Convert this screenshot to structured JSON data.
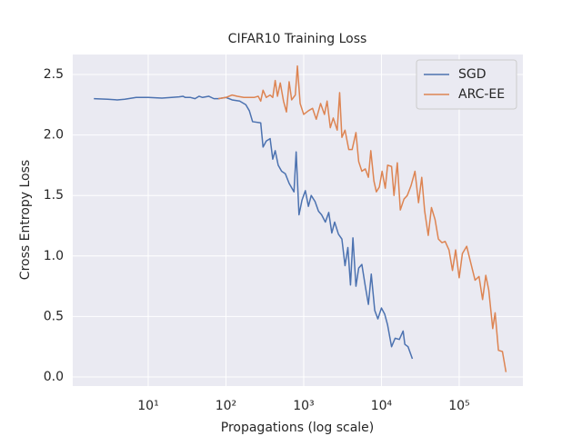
{
  "chart_data": {
    "type": "line",
    "title": "CIFAR10 Training Loss",
    "x_label": "Propagations (log scale)",
    "y_label": "Cross Entropy Loss",
    "xscale": "log",
    "grid": true,
    "legend": "upper right",
    "xlim": [
      1.07,
      660000
    ],
    "ylim": [
      -0.075,
      2.665
    ],
    "xticks": [
      {
        "value": 10,
        "label": "10¹"
      },
      {
        "value": 100,
        "label": "10²"
      },
      {
        "value": 1000,
        "label": "10³"
      },
      {
        "value": 10000,
        "label": "10⁴"
      },
      {
        "value": 100000,
        "label": "10⁵"
      }
    ],
    "yticks": [
      {
        "value": 0,
        "label": "0.0"
      },
      {
        "value": 0.5,
        "label": "0.5"
      },
      {
        "value": 1,
        "label": "1.0"
      },
      {
        "value": 1.5,
        "label": "1.5"
      },
      {
        "value": 2,
        "label": "2.0"
      },
      {
        "value": 2.5,
        "label": "2.5"
      }
    ],
    "series": [
      {
        "name": "SGD",
        "color": "#4c72b0",
        "x": [
          2,
          3,
          4,
          5,
          7,
          10,
          15,
          20,
          25,
          28,
          30,
          35,
          40,
          45,
          50,
          60,
          70,
          80,
          100,
          120,
          150,
          180,
          200,
          220,
          280,
          300,
          330,
          370,
          400,
          430,
          470,
          520,
          580,
          650,
          750,
          800,
          870,
          950,
          1050,
          1150,
          1250,
          1400,
          1550,
          1700,
          1900,
          2100,
          2300,
          2500,
          2800,
          3100,
          3400,
          3700,
          4000,
          4300,
          4700,
          5100,
          5600,
          6200,
          6800,
          7400,
          8200,
          9000,
          10000,
          11000,
          12000,
          13500,
          15000,
          17000,
          19000,
          20000,
          22000,
          25000
        ],
        "values": [
          2.3,
          2.295,
          2.29,
          2.295,
          2.31,
          2.31,
          2.305,
          2.31,
          2.315,
          2.32,
          2.31,
          2.31,
          2.3,
          2.32,
          2.31,
          2.32,
          2.3,
          2.3,
          2.31,
          2.29,
          2.28,
          2.25,
          2.2,
          2.11,
          2.1,
          1.9,
          1.95,
          1.97,
          1.8,
          1.87,
          1.75,
          1.7,
          1.68,
          1.6,
          1.53,
          1.86,
          1.34,
          1.46,
          1.54,
          1.41,
          1.5,
          1.45,
          1.37,
          1.34,
          1.28,
          1.36,
          1.19,
          1.28,
          1.18,
          1.14,
          0.92,
          1.07,
          0.76,
          1.15,
          0.75,
          0.9,
          0.93,
          0.75,
          0.6,
          0.85,
          0.55,
          0.48,
          0.57,
          0.52,
          0.43,
          0.25,
          0.32,
          0.31,
          0.38,
          0.27,
          0.25,
          0.15
        ]
      },
      {
        "name": "ARC-EE",
        "color": "#dd8452",
        "x": [
          80,
          100,
          120,
          140,
          170,
          200,
          230,
          260,
          280,
          300,
          330,
          370,
          400,
          430,
          460,
          500,
          550,
          600,
          650,
          700,
          780,
          830,
          900,
          1000,
          1150,
          1300,
          1450,
          1650,
          1850,
          2000,
          2200,
          2400,
          2700,
          2900,
          3100,
          3400,
          3800,
          4200,
          4700,
          5100,
          5600,
          6200,
          6800,
          7300,
          8000,
          8600,
          9400,
          10200,
          11200,
          12000,
          13500,
          14500,
          16000,
          17500,
          19500,
          21500,
          24000,
          27000,
          30000,
          33000,
          36000,
          40000,
          44000,
          49000,
          54000,
          60000,
          66000,
          74000,
          82000,
          90000,
          100000,
          110000,
          125000,
          140000,
          160000,
          180000,
          200000,
          220000,
          240000,
          270000,
          290000,
          320000,
          360000,
          400000
        ],
        "values": [
          2.3,
          2.31,
          2.33,
          2.32,
          2.31,
          2.31,
          2.31,
          2.32,
          2.28,
          2.37,
          2.31,
          2.33,
          2.31,
          2.45,
          2.32,
          2.43,
          2.28,
          2.19,
          2.44,
          2.29,
          2.33,
          2.57,
          2.26,
          2.17,
          2.2,
          2.22,
          2.13,
          2.26,
          2.17,
          2.28,
          2.06,
          2.14,
          2.04,
          2.35,
          1.98,
          2.04,
          1.88,
          1.88,
          2.02,
          1.78,
          1.7,
          1.72,
          1.65,
          1.87,
          1.62,
          1.53,
          1.57,
          1.7,
          1.56,
          1.75,
          1.74,
          1.5,
          1.77,
          1.38,
          1.47,
          1.5,
          1.58,
          1.7,
          1.44,
          1.65,
          1.37,
          1.17,
          1.4,
          1.3,
          1.14,
          1.11,
          1.12,
          1.05,
          0.88,
          1.05,
          0.82,
          1.02,
          1.08,
          0.95,
          0.8,
          0.83,
          0.64,
          0.84,
          0.72,
          0.4,
          0.53,
          0.22,
          0.21,
          0.04
        ]
      }
    ]
  }
}
